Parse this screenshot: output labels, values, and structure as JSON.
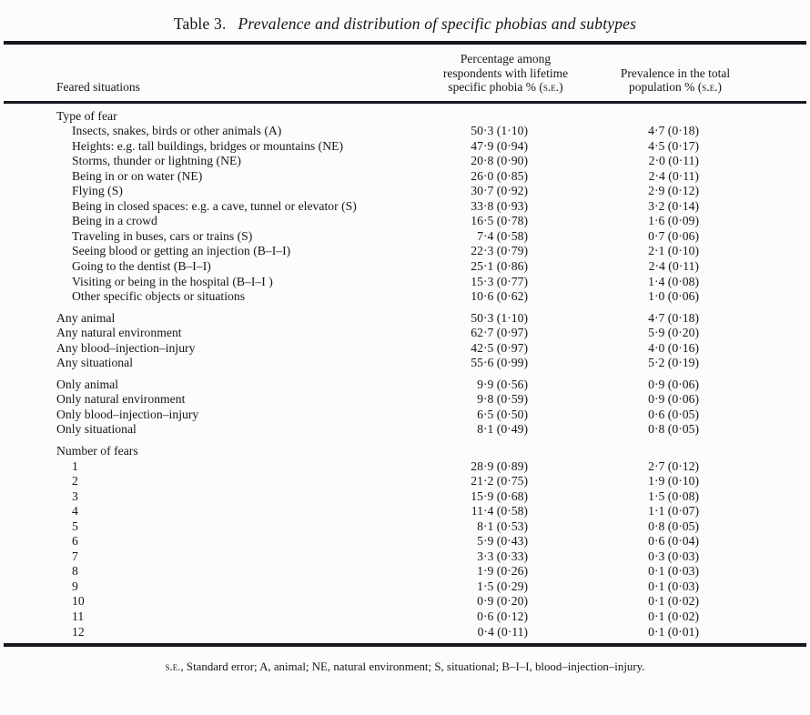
{
  "caption": {
    "label": "Table 3.",
    "title": "Prevalence and distribution of specific phobias and subtypes"
  },
  "header": {
    "col1": "Feared situations",
    "col2_lines": [
      "Percentage among",
      "respondents with lifetime"
    ],
    "col2_last_prefix": "specific phobia % (",
    "col3_lines": [
      "Prevalence in the total"
    ],
    "col3_last_prefix": "population % (",
    "se_abbrev": "s.e.",
    "paren_close": ")"
  },
  "sections": [
    {
      "header": "Type of fear",
      "indent": true,
      "rows": [
        {
          "label": "Insects, snakes, birds or other animals (A)",
          "pct": "50·3 (1·10)",
          "prev": "4·7 (0·18)"
        },
        {
          "label": "Heights: e.g. tall buildings, bridges or mountains (NE)",
          "pct": "47·9 (0·94)",
          "prev": "4·5 (0·17)"
        },
        {
          "label": "Storms, thunder or lightning (NE)",
          "pct": "20·8 (0·90)",
          "prev": "2·0 (0·11)"
        },
        {
          "label": "Being in or on water (NE)",
          "pct": "26·0 (0·85)",
          "prev": "2·4 (0·11)"
        },
        {
          "label": "Flying (S)",
          "pct": "30·7 (0·92)",
          "prev": "2·9 (0·12)"
        },
        {
          "label": "Being in closed spaces: e.g. a cave, tunnel or elevator (S)",
          "pct": "33·8 (0·93)",
          "prev": "3·2 (0·14)"
        },
        {
          "label": "Being in a crowd",
          "pct": "16·5 (0·78)",
          "prev": "1·6 (0·09)"
        },
        {
          "label": "Traveling in buses, cars or trains (S)",
          "pct": "7·4 (0·58)",
          "prev": "0·7 (0·06)"
        },
        {
          "label": "Seeing blood or getting an injection (B–I–I)",
          "pct": "22·3 (0·79)",
          "prev": "2·1 (0·10)"
        },
        {
          "label": "Going to the dentist (B–I–I)",
          "pct": "25·1 (0·86)",
          "prev": "2·4 (0·11)"
        },
        {
          "label": "Visiting or being in the hospital (B–I–I )",
          "pct": "15·3 (0·77)",
          "prev": "1·4 (0·08)"
        },
        {
          "label": "Other specific objects or situations",
          "pct": "10·6 (0·62)",
          "prev": "1·0 (0·06)"
        }
      ]
    },
    {
      "header": "",
      "indent": false,
      "rows": [
        {
          "label": "Any animal",
          "pct": "50·3 (1·10)",
          "prev": "4·7 (0·18)"
        },
        {
          "label": "Any natural environment",
          "pct": "62·7 (0·97)",
          "prev": "5·9 (0·20)"
        },
        {
          "label": "Any blood–injection–injury",
          "pct": "42·5 (0·97)",
          "prev": "4·0 (0·16)"
        },
        {
          "label": "Any situational",
          "pct": "55·6 (0·99)",
          "prev": "5·2 (0·19)"
        }
      ]
    },
    {
      "header": "",
      "indent": false,
      "rows": [
        {
          "label": "Only animal",
          "pct": "9·9 (0·56)",
          "prev": "0·9 (0·06)"
        },
        {
          "label": "Only natural environment",
          "pct": "9·8 (0·59)",
          "prev": "0·9 (0·06)"
        },
        {
          "label": "Only blood–injection–injury",
          "pct": "6·5 (0·50)",
          "prev": "0·6 (0·05)"
        },
        {
          "label": "Only situational",
          "pct": "8·1 (0·49)",
          "prev": "0·8 (0·05)"
        }
      ]
    },
    {
      "header": "Number of fears",
      "indent": true,
      "rows": [
        {
          "label": "1",
          "pct": "28·9 (0·89)",
          "prev": "2·7 (0·12)"
        },
        {
          "label": "2",
          "pct": "21·2 (0·75)",
          "prev": "1·9 (0·10)"
        },
        {
          "label": "3",
          "pct": "15·9 (0·68)",
          "prev": "1·5 (0·08)"
        },
        {
          "label": "4",
          "pct": "11·4 (0·58)",
          "prev": "1·1 (0·07)"
        },
        {
          "label": "5",
          "pct": "8·1 (0·53)",
          "prev": "0·8 (0·05)"
        },
        {
          "label": "6",
          "pct": "5·9 (0·43)",
          "prev": "0·6 (0·04)"
        },
        {
          "label": "7",
          "pct": "3·3 (0·33)",
          "prev": "0·3 (0·03)"
        },
        {
          "label": "8",
          "pct": "1·9 (0·26)",
          "prev": "0·1 (0·03)"
        },
        {
          "label": "9",
          "pct": "1·5 (0·29)",
          "prev": "0·1 (0·03)"
        },
        {
          "label": "10",
          "pct": "0·9 (0·20)",
          "prev": "0·1 (0·02)"
        },
        {
          "label": "11",
          "pct": "0·6 (0·12)",
          "prev": "0·1 (0·02)"
        },
        {
          "label": "12",
          "pct": "0·4 (0·11)",
          "prev": "0·1 (0·01)"
        }
      ]
    }
  ],
  "footnote": {
    "abbrev": "s.e.",
    "rest": ", Standard error; A, animal; NE, natural environment; S, situational; B–I–I, blood–injection–injury."
  }
}
